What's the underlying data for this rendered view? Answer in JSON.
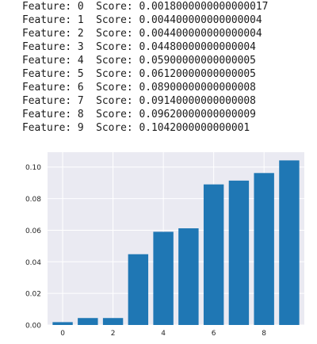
{
  "output_lines": [
    "Feature: 0  Score: 0.0018000000000000017",
    "Feature: 1  Score: 0.004400000000000004",
    "Feature: 2  Score: 0.004400000000000004",
    "Feature: 3  Score: 0.04480000000000004",
    "Feature: 4  Score: 0.05900000000000005",
    "Feature: 5  Score: 0.06120000000000005",
    "Feature: 6  Score: 0.08900000000000008",
    "Feature: 7  Score: 0.09140000000000008",
    "Feature: 8  Score: 0.09620000000000009",
    "Feature: 9  Score: 0.1042000000000001"
  ],
  "chart_data": {
    "type": "bar",
    "categories": [
      0,
      1,
      2,
      3,
      4,
      5,
      6,
      7,
      8,
      9
    ],
    "values": [
      0.0018,
      0.0044,
      0.0044,
      0.0448,
      0.059,
      0.0612,
      0.089,
      0.0914,
      0.0962,
      0.1042
    ],
    "xticks": [
      0,
      2,
      4,
      6,
      8
    ],
    "yticks": [
      0.0,
      0.02,
      0.04,
      0.06,
      0.08,
      0.1
    ],
    "ytick_labels": [
      "0.00",
      "0.02",
      "0.04",
      "0.06",
      "0.08",
      "0.10"
    ],
    "ylim": [
      0,
      0.1094
    ],
    "xlim": [
      -0.6,
      9.6
    ],
    "title": "",
    "xlabel": "",
    "ylabel": "",
    "grid": true,
    "bar_color": "#1f77b4",
    "background": "#eaeaf2",
    "grid_color": "#ffffff"
  }
}
